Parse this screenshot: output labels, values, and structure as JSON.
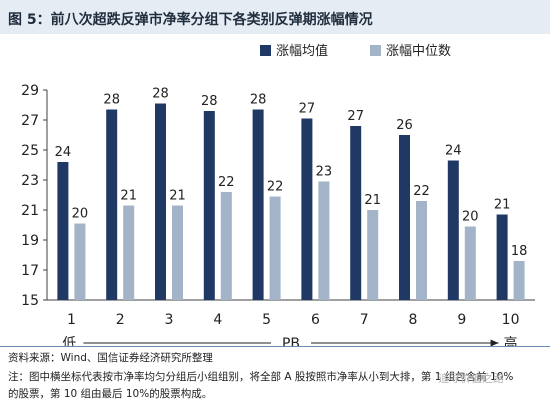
{
  "header": {
    "fig_label": "图  5：",
    "title": "前八次超跌反弹市净率分组下各类别反弹期涨幅情况"
  },
  "chart_data": {
    "type": "bar",
    "categories": [
      "1",
      "2",
      "3",
      "4",
      "5",
      "6",
      "7",
      "8",
      "9",
      "10"
    ],
    "category_sublabels": {
      "first": "低",
      "last": "高"
    },
    "xlabel": "PB",
    "ylabel": "",
    "ylim": [
      15,
      29
    ],
    "yticks": [
      15,
      17,
      19,
      21,
      23,
      25,
      27,
      29
    ],
    "grid": false,
    "legend_position": "top-right",
    "series": [
      {
        "name": "涨幅均值",
        "color": "#1f3864",
        "values": [
          24,
          28,
          28,
          28,
          28,
          27,
          27,
          26,
          24,
          21
        ],
        "y": [
          24.2,
          27.7,
          28.1,
          27.6,
          27.7,
          27.1,
          26.6,
          26.0,
          24.3,
          20.7
        ]
      },
      {
        "name": "涨幅中位数",
        "color": "#a4b4c8",
        "values": [
          20,
          21,
          21,
          22,
          22,
          23,
          21,
          22,
          20,
          18
        ],
        "y": [
          20.1,
          21.3,
          21.3,
          22.2,
          21.9,
          22.9,
          21.0,
          21.6,
          19.9,
          17.6
        ]
      }
    ]
  },
  "footer": {
    "source": "资料来源：Wind、国信证券经济研究所整理",
    "note_line1": "注：图中横坐标代表按市净率均匀分组后小组组别，将全部 A 股按照市净率从小到大排，第 1 组包含前 10%",
    "note_line2": "的股票，第 10 组由最后 10%的股票构成。"
  },
  "watermark": "追寻价值之路"
}
